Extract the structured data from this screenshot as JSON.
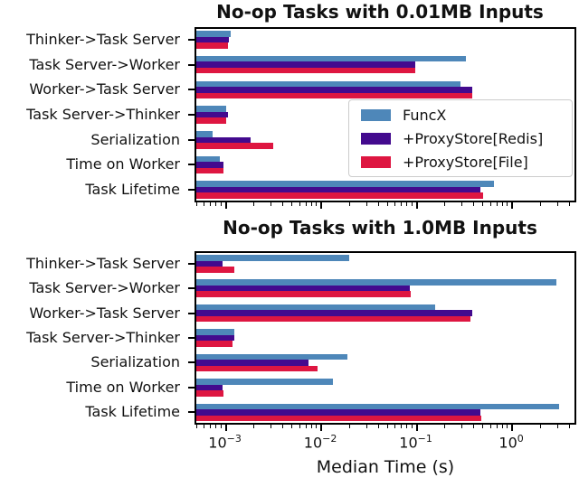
{
  "figure": {
    "background": "#ffffff"
  },
  "colors": {
    "funcx": "#4E87B9",
    "proxystore_redis": "#430A8E",
    "proxystore_file": "#DE1641",
    "axis": "#000000",
    "text": "#111111",
    "legend_border": "#cccccc"
  },
  "legend": {
    "items": [
      {
        "label": "FuncX",
        "color": "funcx"
      },
      {
        "label": "+ProxyStore[Redis]",
        "color": "proxystore_redis"
      },
      {
        "label": "+ProxyStore[File]",
        "color": "proxystore_file"
      }
    ]
  },
  "chart_data": [
    {
      "type": "bar",
      "orientation": "horizontal",
      "x_scale": "log",
      "xlim": [
        0.00048,
        4.8
      ],
      "title": "No-op Tasks with 0.01MB Inputs",
      "xlabel": "",
      "x_tick_labels_visible": false,
      "categories": [
        "Thinker->Task Server",
        "Task Server->Worker",
        "Worker->Task Server",
        "Task Server->Thinker",
        "Serialization",
        "Time on Worker",
        "Task Lifetime"
      ],
      "series": [
        {
          "name": "FuncX",
          "color": "funcx",
          "values": [
            0.0011,
            0.34,
            0.3,
            0.001,
            0.00072,
            0.00085,
            0.67
          ]
        },
        {
          "name": "+ProxyStore[Redis]",
          "color": "proxystore_redis",
          "values": [
            0.00105,
            0.1,
            0.4,
            0.00104,
            0.0018,
            0.00092,
            0.49
          ]
        },
        {
          "name": "+ProxyStore[File]",
          "color": "proxystore_file",
          "values": [
            0.00104,
            0.1,
            0.4,
            0.001,
            0.0031,
            0.00092,
            0.52
          ]
        }
      ]
    },
    {
      "type": "bar",
      "orientation": "horizontal",
      "x_scale": "log",
      "xlim": [
        0.00048,
        4.8
      ],
      "title": "No-op Tasks with 1.0MB Inputs",
      "xlabel": "Median Time (s)",
      "x_tick_labels_visible": true,
      "x_ticks": [
        {
          "base": "10",
          "exp": "−3",
          "value": 0.001
        },
        {
          "base": "10",
          "exp": "−2",
          "value": 0.01
        },
        {
          "base": "10",
          "exp": "−1",
          "value": 0.1
        },
        {
          "base": "10",
          "exp": "0",
          "value": 1
        }
      ],
      "categories": [
        "Thinker->Task Server",
        "Task Server->Worker",
        "Worker->Task Server",
        "Task Server->Thinker",
        "Serialization",
        "Time on Worker",
        "Task Lifetime"
      ],
      "series": [
        {
          "name": "FuncX",
          "color": "funcx",
          "values": [
            0.02,
            3.1,
            0.16,
            0.0012,
            0.019,
            0.0135,
            3.3
          ]
        },
        {
          "name": "+ProxyStore[Redis]",
          "color": "proxystore_redis",
          "values": [
            0.0009,
            0.086,
            0.4,
            0.0012,
            0.0073,
            0.0009,
            0.49
          ]
        },
        {
          "name": "+ProxyStore[File]",
          "color": "proxystore_file",
          "values": [
            0.0012,
            0.089,
            0.38,
            0.00116,
            0.0092,
            0.00093,
            0.5
          ]
        }
      ]
    }
  ]
}
